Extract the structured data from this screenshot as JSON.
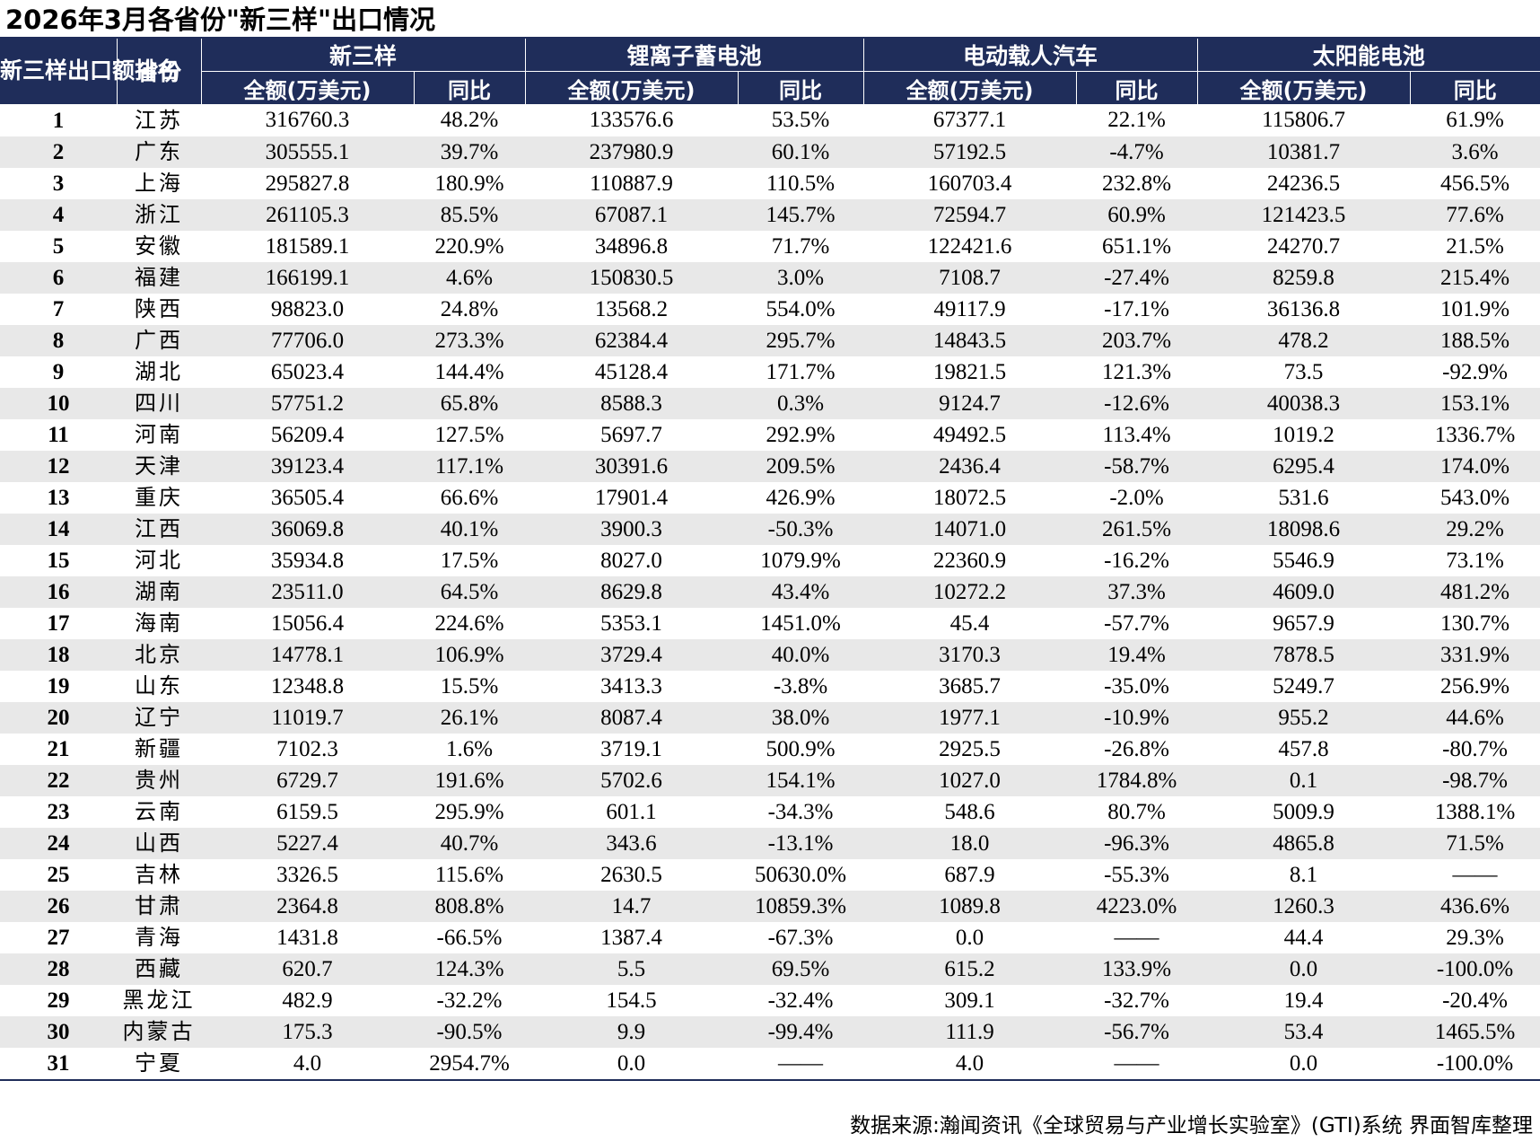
{
  "title": "2026年3月各省份\"新三样\"出口情况",
  "header": {
    "rank_header": "新三样出口额排名",
    "province_header": "省份",
    "groups": [
      "新三样",
      "锂离子蓄电池",
      "电动载人汽车",
      "太阳能电池"
    ],
    "amount_label": "全额(万美元)",
    "yoy_label": "同比"
  },
  "rows": [
    [
      "1",
      "江苏",
      "316760.3",
      "48.2%",
      "133576.6",
      "53.5%",
      "67377.1",
      "22.1%",
      "115806.7",
      "61.9%"
    ],
    [
      "2",
      "广东",
      "305555.1",
      "39.7%",
      "237980.9",
      "60.1%",
      "57192.5",
      "-4.7%",
      "10381.7",
      "3.6%"
    ],
    [
      "3",
      "上海",
      "295827.8",
      "180.9%",
      "110887.9",
      "110.5%",
      "160703.4",
      "232.8%",
      "24236.5",
      "456.5%"
    ],
    [
      "4",
      "浙江",
      "261105.3",
      "85.5%",
      "67087.1",
      "145.7%",
      "72594.7",
      "60.9%",
      "121423.5",
      "77.6%"
    ],
    [
      "5",
      "安徽",
      "181589.1",
      "220.9%",
      "34896.8",
      "71.7%",
      "122421.6",
      "651.1%",
      "24270.7",
      "21.5%"
    ],
    [
      "6",
      "福建",
      "166199.1",
      "4.6%",
      "150830.5",
      "3.0%",
      "7108.7",
      "-27.4%",
      "8259.8",
      "215.4%"
    ],
    [
      "7",
      "陕西",
      "98823.0",
      "24.8%",
      "13568.2",
      "554.0%",
      "49117.9",
      "-17.1%",
      "36136.8",
      "101.9%"
    ],
    [
      "8",
      "广西",
      "77706.0",
      "273.3%",
      "62384.4",
      "295.7%",
      "14843.5",
      "203.7%",
      "478.2",
      "188.5%"
    ],
    [
      "9",
      "湖北",
      "65023.4",
      "144.4%",
      "45128.4",
      "171.7%",
      "19821.5",
      "121.3%",
      "73.5",
      "-92.9%"
    ],
    [
      "10",
      "四川",
      "57751.2",
      "65.8%",
      "8588.3",
      "0.3%",
      "9124.7",
      "-12.6%",
      "40038.3",
      "153.1%"
    ],
    [
      "11",
      "河南",
      "56209.4",
      "127.5%",
      "5697.7",
      "292.9%",
      "49492.5",
      "113.4%",
      "1019.2",
      "1336.7%"
    ],
    [
      "12",
      "天津",
      "39123.4",
      "117.1%",
      "30391.6",
      "209.5%",
      "2436.4",
      "-58.7%",
      "6295.4",
      "174.0%"
    ],
    [
      "13",
      "重庆",
      "36505.4",
      "66.6%",
      "17901.4",
      "426.9%",
      "18072.5",
      "-2.0%",
      "531.6",
      "543.0%"
    ],
    [
      "14",
      "江西",
      "36069.8",
      "40.1%",
      "3900.3",
      "-50.3%",
      "14071.0",
      "261.5%",
      "18098.6",
      "29.2%"
    ],
    [
      "15",
      "河北",
      "35934.8",
      "17.5%",
      "8027.0",
      "1079.9%",
      "22360.9",
      "-16.2%",
      "5546.9",
      "73.1%"
    ],
    [
      "16",
      "湖南",
      "23511.0",
      "64.5%",
      "8629.8",
      "43.4%",
      "10272.2",
      "37.3%",
      "4609.0",
      "481.2%"
    ],
    [
      "17",
      "海南",
      "15056.4",
      "224.6%",
      "5353.1",
      "1451.0%",
      "45.4",
      "-57.7%",
      "9657.9",
      "130.7%"
    ],
    [
      "18",
      "北京",
      "14778.1",
      "106.9%",
      "3729.4",
      "40.0%",
      "3170.3",
      "19.4%",
      "7878.5",
      "331.9%"
    ],
    [
      "19",
      "山东",
      "12348.8",
      "15.5%",
      "3413.3",
      "-3.8%",
      "3685.7",
      "-35.0%",
      "5249.7",
      "256.9%"
    ],
    [
      "20",
      "辽宁",
      "11019.7",
      "26.1%",
      "8087.4",
      "38.0%",
      "1977.1",
      "-10.9%",
      "955.2",
      "44.6%"
    ],
    [
      "21",
      "新疆",
      "7102.3",
      "1.6%",
      "3719.1",
      "500.9%",
      "2925.5",
      "-26.8%",
      "457.8",
      "-80.7%"
    ],
    [
      "22",
      "贵州",
      "6729.7",
      "191.6%",
      "5702.6",
      "154.1%",
      "1027.0",
      "1784.8%",
      "0.1",
      "-98.7%"
    ],
    [
      "23",
      "云南",
      "6159.5",
      "295.9%",
      "601.1",
      "-34.3%",
      "548.6",
      "80.7%",
      "5009.9",
      "1388.1%"
    ],
    [
      "24",
      "山西",
      "5227.4",
      "40.7%",
      "343.6",
      "-13.1%",
      "18.0",
      "-96.3%",
      "4865.8",
      "71.5%"
    ],
    [
      "25",
      "吉林",
      "3326.5",
      "115.6%",
      "2630.5",
      "50630.0%",
      "687.9",
      "-55.3%",
      "8.1",
      "——"
    ],
    [
      "26",
      "甘肃",
      "2364.8",
      "808.8%",
      "14.7",
      "10859.3%",
      "1089.8",
      "4223.0%",
      "1260.3",
      "436.6%"
    ],
    [
      "27",
      "青海",
      "1431.8",
      "-66.5%",
      "1387.4",
      "-67.3%",
      "0.0",
      "——",
      "44.4",
      "29.3%"
    ],
    [
      "28",
      "西藏",
      "620.7",
      "124.3%",
      "5.5",
      "69.5%",
      "615.2",
      "133.9%",
      "0.0",
      "-100.0%"
    ],
    [
      "29",
      "黑龙江",
      "482.9",
      "-32.2%",
      "154.5",
      "-32.4%",
      "309.1",
      "-32.7%",
      "19.4",
      "-20.4%"
    ],
    [
      "30",
      "内蒙古",
      "175.3",
      "-90.5%",
      "9.9",
      "-99.4%",
      "111.9",
      "-56.7%",
      "53.4",
      "1465.5%"
    ],
    [
      "31",
      "宁夏",
      "4.0",
      "2954.7%",
      "0.0",
      "——",
      "4.0",
      "——",
      "0.0",
      "-100.0%"
    ]
  ],
  "footer": "数据来源:瀚闻资讯《全球贸易与产业增长实验室》(GTI)系统 界面智库整理"
}
